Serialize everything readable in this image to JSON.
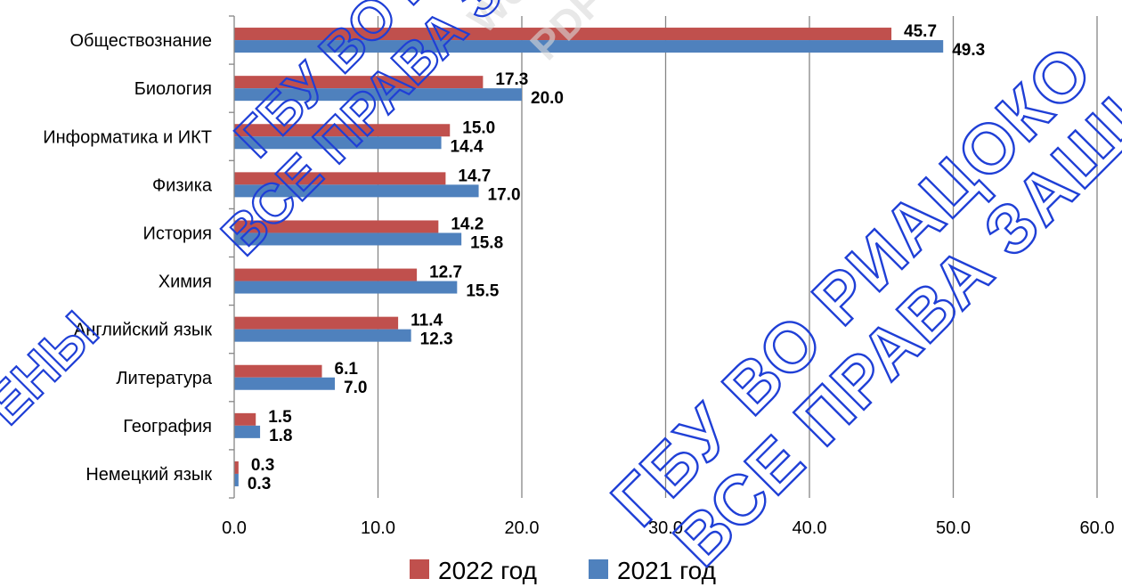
{
  "chart_data": {
    "type": "bar",
    "orientation": "horizontal",
    "categories": [
      "Обществознание",
      "Биология",
      "Информатика и ИКТ",
      "Физика",
      "История",
      "Химия",
      "Английский язык",
      "Литература",
      "География",
      "Немецкий язык"
    ],
    "series": [
      {
        "name": "2022 год",
        "color": "#c0504d",
        "values": [
          45.7,
          17.3,
          15.0,
          14.7,
          14.2,
          12.7,
          11.4,
          6.1,
          1.5,
          0.3
        ]
      },
      {
        "name": "2021 год",
        "color": "#4f81bd",
        "values": [
          49.3,
          20.0,
          14.4,
          17.0,
          15.8,
          15.5,
          12.3,
          7.0,
          1.8,
          0.3
        ]
      }
    ],
    "value_labels": {
      "2022 год": [
        "45.7",
        "17.3",
        "15.0",
        "14.7",
        "14.2",
        "12.7",
        "11.4",
        "6.1",
        "1.5",
        "0.3"
      ],
      "2021 год": [
        "49.3",
        "20.0",
        "14.4",
        "17.0",
        "15.8",
        "15.5",
        "12.3",
        "7.0",
        "1.8",
        "0.3"
      ]
    },
    "xlim": [
      0,
      60
    ],
    "xticks": [
      "0.0",
      "10.0",
      "20.0",
      "30.0",
      "40.0",
      "50.0",
      "60.0"
    ],
    "grid": "vertical",
    "legend": "bottom",
    "title": "",
    "xlabel": "",
    "ylabel": ""
  },
  "watermarks": {
    "line1": "ГБУ ВО РИАЦОКО",
    "line2": "ВСЕ ПРАВА ЗАЩИЩЕНЫ",
    "fragment_left": "ЕНЫ",
    "faint1": "Wor",
    "faint2": "PDFel"
  },
  "colors": {
    "grid": "#868686",
    "axis": "#868686",
    "watermark": "#1f3fd6"
  }
}
